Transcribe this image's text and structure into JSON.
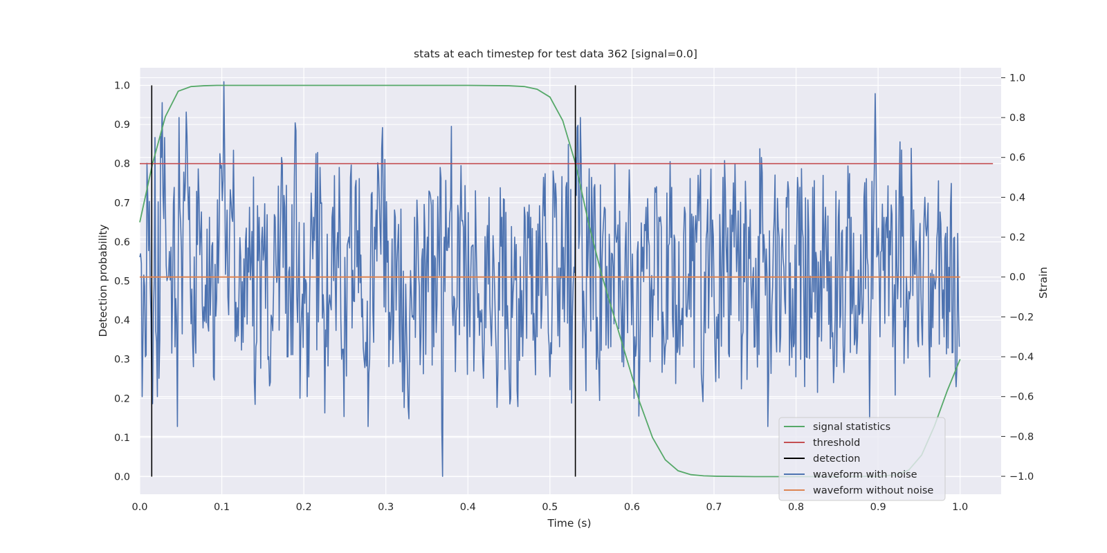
{
  "chart_data": {
    "type": "line",
    "title": "stats at each timestep for test data 362 [signal=0.0]",
    "xlabel": "Time (s)",
    "ylabel": "Detection probability",
    "y2label": "Strain",
    "xlim": [
      0.0,
      1.05
    ],
    "ylim": [
      -0.045,
      1.045
    ],
    "y2lim": [
      -1.09,
      1.05
    ],
    "xticks": [
      "0.0",
      "0.1",
      "0.2",
      "0.3",
      "0.4",
      "0.5",
      "0.6",
      "0.7",
      "0.8",
      "0.9",
      "1.0"
    ],
    "yticks": [
      "0.0",
      "0.1",
      "0.2",
      "0.3",
      "0.4",
      "0.5",
      "0.6",
      "0.7",
      "0.8",
      "0.9",
      "1.0"
    ],
    "y2ticks": [
      "−1.0",
      "−0.8",
      "−0.6",
      "−0.4",
      "−0.2",
      "0.0",
      "0.2",
      "0.4",
      "0.6",
      "0.8",
      "1.0"
    ],
    "grid": true,
    "legend_position": "bottom-right",
    "colors": {
      "signal": "#55a868",
      "threshold": "#c44e52",
      "detection": "#000000",
      "noisy": "#4c72b0",
      "clean": "#dd8452",
      "background": "#eaeaf2",
      "grid": "#ffffff"
    },
    "series": [
      {
        "name": "signal statistics",
        "axis": "left",
        "x": [
          0.0,
          0.0156,
          0.0312,
          0.0469,
          0.0625,
          0.0781,
          0.0938,
          0.1094,
          0.125,
          0.2,
          0.3,
          0.4,
          0.45,
          0.4688,
          0.4844,
          0.5,
          0.5156,
          0.5312,
          0.5469,
          0.5625,
          0.5781,
          0.5938,
          0.6094,
          0.625,
          0.6406,
          0.6562,
          0.6719,
          0.6875,
          0.7031,
          0.75,
          0.8,
          0.85,
          0.9,
          0.9219,
          0.9375,
          0.9531,
          0.9688,
          0.9844,
          1.0
        ],
        "y": [
          0.65,
          0.8,
          0.92,
          0.985,
          0.997,
          0.999,
          1.0,
          1.0,
          1.0,
          1.0,
          1.0,
          1.0,
          0.999,
          0.997,
          0.99,
          0.97,
          0.91,
          0.8,
          0.65,
          0.52,
          0.41,
          0.3,
          0.19,
          0.1,
          0.043,
          0.015,
          0.005,
          0.002,
          0.001,
          0.0,
          0.0,
          0.0,
          0.001,
          0.004,
          0.017,
          0.055,
          0.13,
          0.22,
          0.3
        ]
      },
      {
        "name": "threshold",
        "axis": "left",
        "x": [
          0.0,
          1.04
        ],
        "y": [
          0.8,
          0.8
        ]
      },
      {
        "name": "detection",
        "axis": "left",
        "segments": [
          {
            "x": 0.0146,
            "y": [
              0.0,
              1.0
            ]
          },
          {
            "x": 0.531,
            "y": [
              0.0,
              1.0
            ]
          }
        ]
      },
      {
        "name": "waveform with noise",
        "axis": "right",
        "x_start": 0.0,
        "x_end": 0.999,
        "sample_count": 1024,
        "y_anchors": [
          [
            0.0,
            0.1
          ],
          [
            0.0029,
            -0.6
          ],
          [
            0.0068,
            -0.4
          ],
          [
            0.0098,
            0.4
          ],
          [
            0.0146,
            -0.55
          ],
          [
            0.0186,
            0.7
          ],
          [
            0.0215,
            -0.6
          ],
          [
            0.0264,
            0.6
          ],
          [
            0.0303,
            0.7
          ],
          [
            0.0342,
            0.0
          ],
          [
            0.0381,
            0.15
          ],
          [
            0.042,
            0.45
          ],
          [
            0.0459,
            -0.75
          ],
          [
            0.0479,
            0.8
          ],
          [
            0.0527,
            0.25
          ],
          [
            0.0586,
            0.45
          ],
          [
            0.0654,
            -0.45
          ],
          [
            0.0723,
            0.4
          ],
          [
            0.0781,
            -0.15
          ],
          [
            0.085,
            0.3
          ],
          [
            0.0898,
            -0.5
          ],
          [
            0.0967,
            0.2
          ],
          [
            0.1025,
            0.98
          ],
          [
            0.1074,
            -0.1
          ],
          [
            0.1123,
            0.3
          ],
          [
            0.1182,
            -0.3
          ],
          [
            0.1279,
            -0.2
          ],
          [
            0.1338,
            0.35
          ],
          [
            0.1416,
            -0.35
          ],
          [
            0.1494,
            0.25
          ],
          [
            0.1572,
            -0.4
          ],
          [
            0.165,
            0.3
          ],
          [
            0.1729,
            0.6
          ],
          [
            0.1807,
            -0.4
          ],
          [
            0.1885,
            0.5
          ],
          [
            0.1963,
            -0.3
          ],
          [
            0.2041,
            -0.6
          ],
          [
            0.2119,
            0.3
          ],
          [
            0.2197,
            0.55
          ],
          [
            0.2275,
            -0.35
          ],
          [
            0.2354,
            0.35
          ],
          [
            0.2432,
            0.55
          ],
          [
            0.249,
            -0.7
          ],
          [
            0.2549,
            0.2
          ],
          [
            0.2627,
            0.45
          ],
          [
            0.2705,
            -0.2
          ],
          [
            0.2783,
            -0.75
          ],
          [
            0.2861,
            0.25
          ],
          [
            0.2959,
            0.75
          ],
          [
            0.3037,
            -0.45
          ],
          [
            0.3115,
            0.3
          ],
          [
            0.3193,
            -0.2
          ],
          [
            0.3271,
            -0.65
          ],
          [
            0.335,
            0.3
          ],
          [
            0.3428,
            -0.3
          ],
          [
            0.3506,
            0.2
          ],
          [
            0.3584,
            -0.35
          ],
          [
            0.3662,
            0.55
          ],
          [
            0.3691,
            -1.0
          ],
          [
            0.3711,
            0.2
          ],
          [
            0.3789,
            0.35
          ],
          [
            0.3867,
            -0.15
          ],
          [
            0.3945,
            0.25
          ],
          [
            0.4023,
            -0.3
          ],
          [
            0.4102,
            0.15
          ],
          [
            0.418,
            -0.4
          ],
          [
            0.4258,
            0.4
          ],
          [
            0.4336,
            -0.25
          ],
          [
            0.4414,
            0.3
          ],
          [
            0.4492,
            -0.3
          ],
          [
            0.457,
            0.2
          ],
          [
            0.4609,
            -0.65
          ],
          [
            0.4688,
            0.35
          ],
          [
            0.4766,
            0.3
          ],
          [
            0.4844,
            -0.3
          ],
          [
            0.4922,
            0.5
          ],
          [
            0.5,
            -0.5
          ],
          [
            0.5059,
            0.3
          ],
          [
            0.5117,
            -0.35
          ],
          [
            0.5195,
            0.45
          ],
          [
            0.5273,
            -0.2
          ],
          [
            0.5313,
            0.6
          ],
          [
            0.5371,
            0.8
          ],
          [
            0.543,
            -0.3
          ],
          [
            0.5508,
            0.5
          ],
          [
            0.5586,
            -0.4
          ],
          [
            0.5664,
            0.35
          ],
          [
            0.5742,
            -0.35
          ],
          [
            0.582,
            0.2
          ],
          [
            0.5898,
            -0.45
          ],
          [
            0.5957,
            0.3
          ],
          [
            0.6035,
            -0.3
          ],
          [
            0.6094,
            -0.45
          ],
          [
            0.6172,
            0.35
          ],
          [
            0.625,
            -0.3
          ],
          [
            0.6328,
            0.3
          ],
          [
            0.6406,
            -0.35
          ],
          [
            0.6484,
            0.45
          ],
          [
            0.6563,
            -0.35
          ],
          [
            0.6641,
            0.35
          ],
          [
            0.6719,
            -0.2
          ],
          [
            0.6797,
            0.3
          ],
          [
            0.6875,
            -0.35
          ],
          [
            0.6953,
            0.3
          ],
          [
            0.7031,
            -0.2
          ],
          [
            0.7109,
            0.5
          ],
          [
            0.7188,
            -0.4
          ],
          [
            0.7266,
            0.3
          ],
          [
            0.7344,
            -0.3
          ],
          [
            0.7422,
            0.25
          ],
          [
            0.75,
            -0.35
          ],
          [
            0.7578,
            0.6
          ],
          [
            0.7656,
            -0.75
          ],
          [
            0.7734,
            0.3
          ],
          [
            0.7813,
            -0.3
          ],
          [
            0.7891,
            0.35
          ],
          [
            0.7969,
            -0.35
          ],
          [
            0.8047,
            0.45
          ],
          [
            0.8125,
            -0.4
          ],
          [
            0.8203,
            0.45
          ],
          [
            0.8281,
            -0.3
          ],
          [
            0.8359,
            0.35
          ],
          [
            0.8438,
            -0.3
          ],
          [
            0.8516,
            0.3
          ],
          [
            0.8594,
            -0.35
          ],
          [
            0.8672,
            0.3
          ],
          [
            0.875,
            -0.3
          ],
          [
            0.8828,
            0.4
          ],
          [
            0.8906,
            -0.3
          ],
          [
            0.8965,
            0.92
          ],
          [
            0.9023,
            -0.3
          ],
          [
            0.9102,
            0.3
          ],
          [
            0.918,
            -0.35
          ],
          [
            0.9258,
            0.45
          ],
          [
            0.9336,
            -0.25
          ],
          [
            0.9414,
            0.35
          ],
          [
            0.9492,
            -0.35
          ],
          [
            0.957,
            0.4
          ],
          [
            0.9648,
            -0.35
          ],
          [
            0.9727,
            0.25
          ],
          [
            0.9805,
            -0.3
          ],
          [
            0.9883,
            0.35
          ],
          [
            0.9941,
            -0.45
          ],
          [
            0.999,
            -0.35
          ]
        ]
      },
      {
        "name": "waveform without noise",
        "axis": "right",
        "x": [
          0.0,
          1.0
        ],
        "y": [
          0.0,
          0.0
        ]
      }
    ]
  }
}
